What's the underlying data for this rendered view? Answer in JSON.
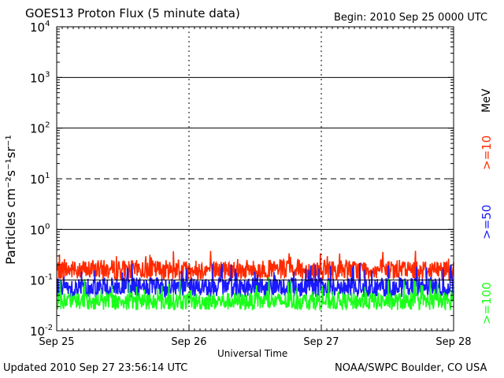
{
  "chart_data": {
    "type": "line",
    "title": "GOES13 Proton Flux (5 minute data)",
    "begin_label": "Begin: 2010 Sep 25 0000 UTC",
    "xlabel": "Universal Time",
    "ylabel": "Particles cm⁻²s⁻¹sr⁻¹",
    "yscale": "log",
    "ylim": [
      0.01,
      10000
    ],
    "y_ticks": [
      {
        "label": "10",
        "exp": "-2",
        "value": 0.01
      },
      {
        "label": "10",
        "exp": "-1",
        "value": 0.1
      },
      {
        "label": "10",
        "exp": "0",
        "value": 1
      },
      {
        "label": "10",
        "exp": "1",
        "value": 10
      },
      {
        "label": "10",
        "exp": "2",
        "value": 100
      },
      {
        "label": "10",
        "exp": "3",
        "value": 1000
      },
      {
        "label": "10",
        "exp": "4",
        "value": 10000
      }
    ],
    "x_ticks": [
      "Sep 25",
      "Sep 26",
      "Sep 27",
      "Sep 28"
    ],
    "xlim_days": [
      0,
      3
    ],
    "threshold_lines": [
      {
        "value": 10,
        "style": "dashed"
      },
      {
        "value": 1,
        "style": "solid"
      },
      {
        "value": 0.1,
        "style": "solid"
      },
      {
        "value": 100,
        "style": "solid"
      },
      {
        "value": 1000,
        "style": "solid"
      }
    ],
    "unit_label": "MeV",
    "series": [
      {
        "name": ">=10",
        "color": "#ff2a00",
        "base": 0.16,
        "spread": 0.45,
        "spike": 0.18
      },
      {
        "name": ">=50",
        "color": "#1a1aff",
        "base": 0.072,
        "spread": 0.45,
        "spike": 0.12
      },
      {
        "name": ">=100",
        "color": "#1aff1a",
        "base": 0.038,
        "spread": 0.4,
        "spike": 0.06
      }
    ]
  },
  "footer": {
    "updated": "Updated 2010 Sep 27 23:56:14 UTC",
    "credit": "NOAA/SWPC Boulder, CO USA"
  }
}
